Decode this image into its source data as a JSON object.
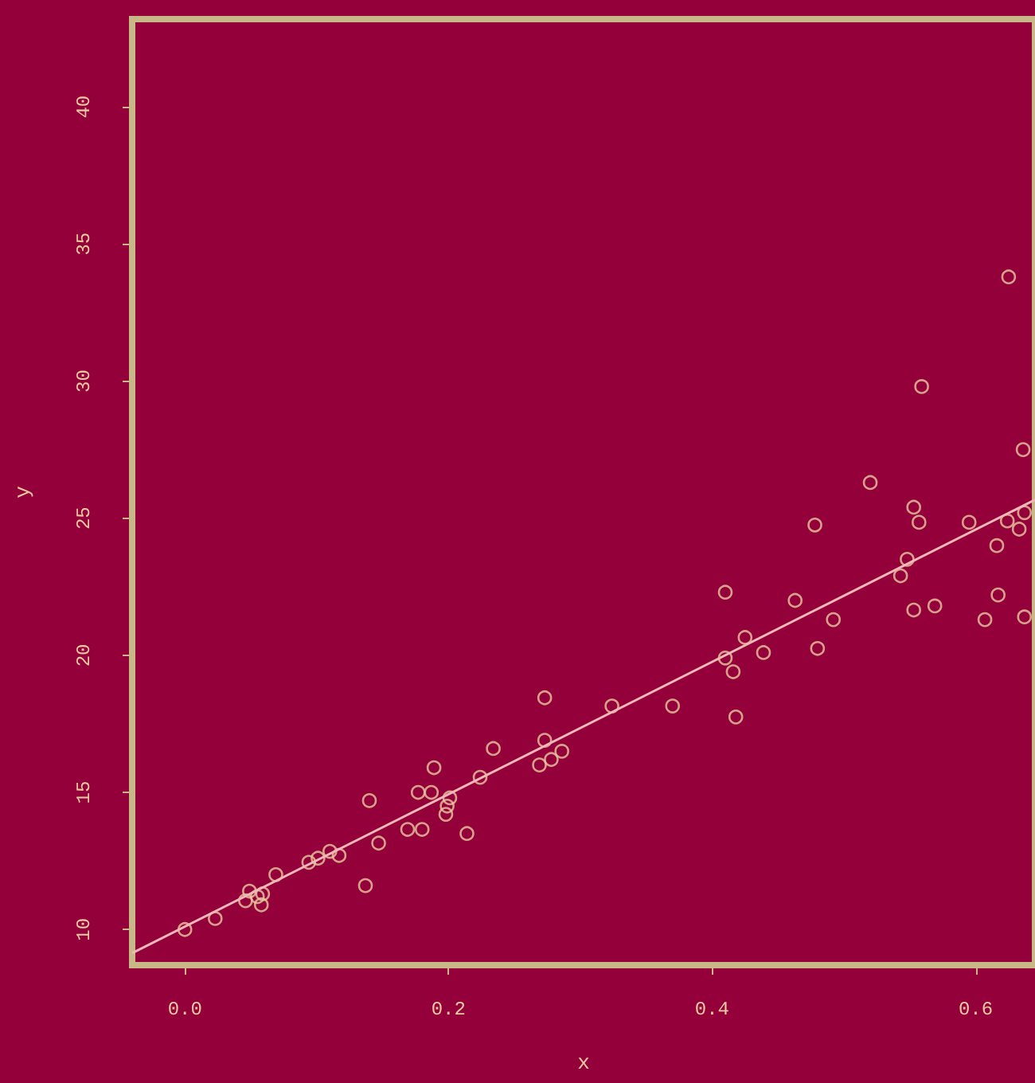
{
  "chart_data": {
    "type": "scatter",
    "xlabel": "x",
    "ylabel": "y",
    "xlim": [
      -0.04,
      0.645
    ],
    "ylim": [
      8.7,
      43.2
    ],
    "xticks": [
      {
        "value": 0,
        "label": "0.0"
      },
      {
        "value": 0.2,
        "label": "0.2"
      },
      {
        "value": 0.4,
        "label": "0.4"
      },
      {
        "value": 0.6,
        "label": "0.6"
      }
    ],
    "yticks": [
      10,
      15,
      20,
      25,
      30,
      35,
      40
    ],
    "grid": false,
    "marker": "circle",
    "series": [
      {
        "color": "#e8c8a0",
        "x": [
          0.0,
          0.023,
          0.046,
          0.049,
          0.055,
          0.058,
          0.059,
          0.069,
          0.094,
          0.101,
          0.11,
          0.117,
          0.137,
          0.14,
          0.147,
          0.169,
          0.177,
          0.18,
          0.187,
          0.189,
          0.198,
          0.199,
          0.201,
          0.214,
          0.224,
          0.234,
          0.269,
          0.273,
          0.273,
          0.278,
          0.286,
          0.324,
          0.37,
          0.41,
          0.41,
          0.416,
          0.418,
          0.425,
          0.439,
          0.463,
          0.478,
          0.48,
          0.492,
          0.52,
          0.543,
          0.548,
          0.553,
          0.553,
          0.557,
          0.559,
          0.569,
          0.595,
          0.607,
          0.616,
          0.617,
          0.624,
          0.625,
          0.633,
          0.636,
          0.637,
          0.637
        ],
        "values": [
          10.0,
          10.4,
          11.05,
          11.4,
          11.2,
          10.9,
          11.3,
          12.0,
          12.45,
          12.6,
          12.85,
          12.7,
          11.6,
          14.7,
          13.15,
          13.65,
          15.0,
          13.65,
          15.0,
          15.9,
          14.2,
          14.5,
          14.8,
          13.5,
          15.55,
          16.6,
          16.0,
          18.45,
          16.9,
          16.2,
          16.5,
          18.15,
          18.15,
          22.3,
          19.9,
          19.4,
          17.75,
          20.65,
          20.1,
          22.0,
          24.75,
          20.25,
          21.3,
          26.3,
          22.9,
          23.5,
          25.4,
          21.65,
          24.85,
          29.8,
          21.8,
          24.85,
          21.3,
          24.0,
          22.2,
          24.9,
          33.8,
          24.6,
          27.5,
          25.2,
          21.4
        ]
      },
      {
        "type": "line",
        "color": "#f0b8b8",
        "marker": "none",
        "x": [
          -0.04,
          0.645
        ],
        "values": [
          9.14,
          25.67
        ]
      }
    ]
  }
}
